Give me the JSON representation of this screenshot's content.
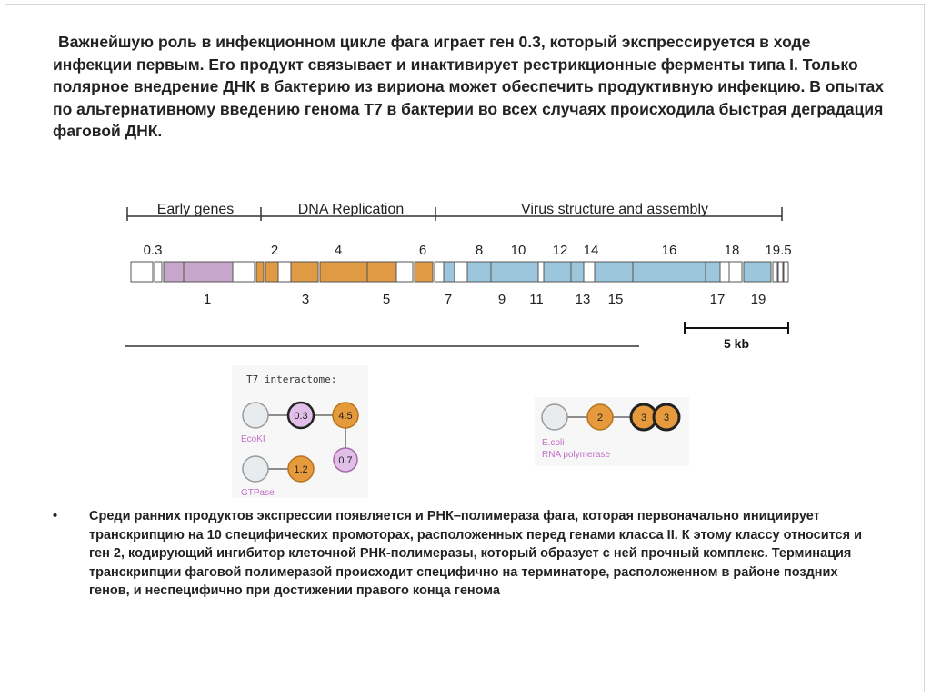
{
  "intro_text": "Важнейшую роль в инфекционном цикле фага играет ген 0.3, который экспрессируется в ходе инфекции первым. Его продукт связывает и инактивирует рестрикционные ферменты типа I. Только полярное внедрение ДНК в бактерию из вириона может обеспечить продуктивную инфекцию. В опытах по альтернативному введению генома Т7 в бактерии во всех случаях происходила быстрая деградация фаговой ДНК.",
  "genome_map": {
    "regions": [
      "Early genes",
      "DNA Replication",
      "Virus structure and assembly"
    ],
    "top_labels": [
      "0.3",
      "2",
      "4",
      "6",
      "8",
      "10",
      "12",
      "14",
      "16",
      "18",
      "19.5"
    ],
    "bottom_labels": [
      "1",
      "3",
      "5",
      "7",
      "9",
      "11",
      "13",
      "15",
      "17",
      "19"
    ],
    "scale_label": "5 kb",
    "colors": {
      "early": "#c7a6cc",
      "replication": "#df9a43",
      "structure": "#9cc6dc",
      "gap": "#ffffff"
    }
  },
  "interactome_left": {
    "title": "T7 interactome:",
    "nodes": [
      "0.3",
      "4.5",
      "0.7",
      "1.2"
    ],
    "host_labels": [
      "EcoKI",
      "GTPase"
    ],
    "colors": {
      "host": "#e9ecef",
      "phage_early": "#e2bfe8",
      "phage_orange": "#e79a3c",
      "label": "#c26dc7"
    }
  },
  "interactome_right": {
    "nodes": [
      "2",
      "3",
      "3"
    ],
    "host_labels": [
      "E.coli",
      "RNA polymerase"
    ]
  },
  "bullet": {
    "marker": "•",
    "text": "Среди ранних продуктов экспрессии появляется и РНК–полимераза фага, которая первоначально инициирует транскрипцию на 10 специфических промоторах, расположенных перед генами класса II.  К этому классу относится и ген 2, кодирующий ингибитор клеточной РНК-полимеразы, который образует с ней прочный комплекс. Терминация транскрипции фаговой полимеразой происходит специфично на терминаторе, расположенном в районе поздних генов, и неспецифично при достижении правого конца генома"
  }
}
